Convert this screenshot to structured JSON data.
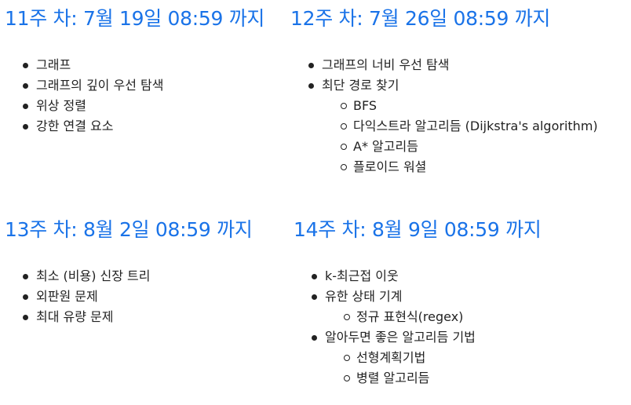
{
  "weeks": [
    {
      "title": "11주 차: 7월 19일 08:59 까지",
      "items": [
        {
          "label": "그래프"
        },
        {
          "label": "그래프의 깊이 우선 탐색"
        },
        {
          "label": "위상 정렬"
        },
        {
          "label": "강한 연결 요소"
        }
      ]
    },
    {
      "title": "12주 차: 7월 26일 08:59 까지",
      "items": [
        {
          "label": "그래프의 너비 우선 탐색"
        },
        {
          "label": "최단 경로 찾기",
          "subitems": [
            {
              "label": "BFS"
            },
            {
              "label": "다익스트라 알고리듬 (Dijkstra's algorithm)"
            },
            {
              "label": "A* 알고리듬"
            },
            {
              "label": "플로이드 워셜"
            }
          ]
        }
      ]
    },
    {
      "title": "13주 차: 8월 2일 08:59 까지",
      "items": [
        {
          "label": "최소 (비용) 신장 트리"
        },
        {
          "label": "외판원 문제"
        },
        {
          "label": "최대 유량 문제"
        }
      ]
    },
    {
      "title": "14주 차: 8월 9일 08:59 까지",
      "items": [
        {
          "label": "k-최근접 이웃"
        },
        {
          "label": "유한 상태 기계",
          "subitems": [
            {
              "label": "정규 표현식(regex)"
            }
          ]
        },
        {
          "label": "알아두면 좋은 알고리듬 기법",
          "subitems": [
            {
              "label": "선형계획기법"
            },
            {
              "label": "병렬 알고리듬"
            }
          ]
        }
      ]
    }
  ]
}
